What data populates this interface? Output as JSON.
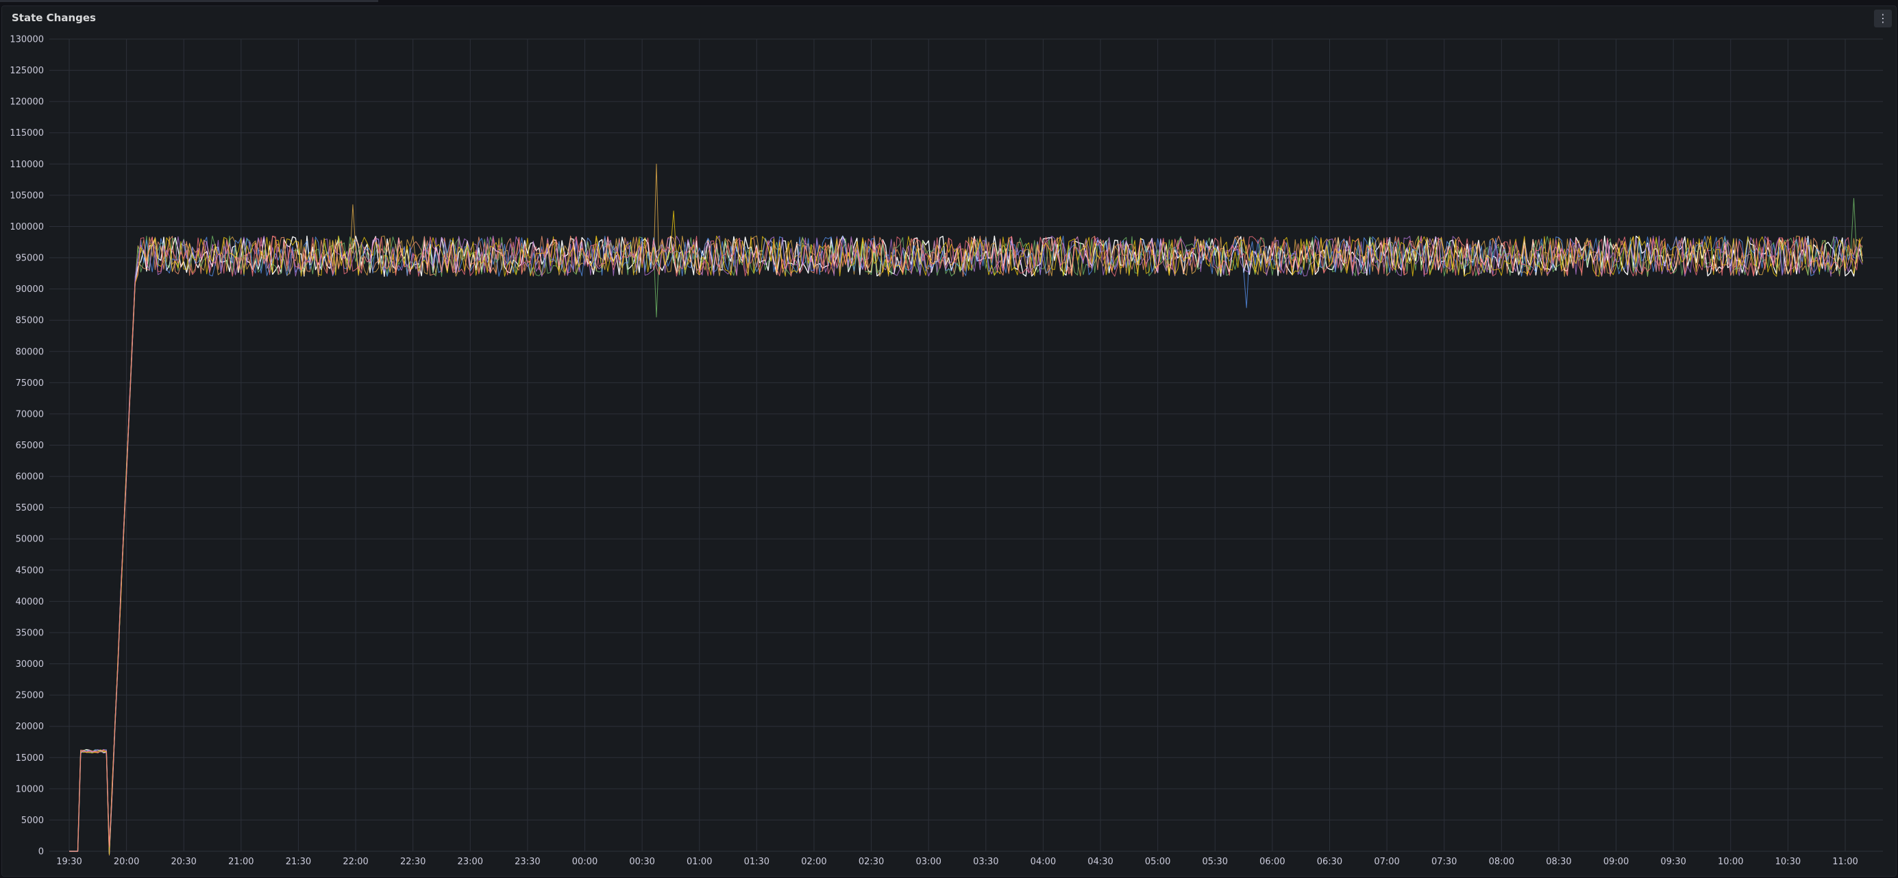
{
  "panel": {
    "title": "State Changes",
    "menu_icon": "vertical-ellipsis-icon",
    "menu_glyph": "⋮"
  },
  "colors": {
    "background": "#111217",
    "panel_bg": "#181b1f",
    "grid": "#2c3039",
    "text": "#ccccdc",
    "series": [
      "#ffffff",
      "#e8b04a",
      "#ff9a72",
      "#73bf69",
      "#5794f2",
      "#b877d9",
      "#f2cc0c",
      "#ff7383"
    ]
  },
  "chart_data": {
    "type": "line",
    "title": "State Changes",
    "xlabel": "",
    "ylabel": "",
    "ylim": [
      0,
      130000
    ],
    "yticks": [
      0,
      5000,
      10000,
      15000,
      20000,
      25000,
      30000,
      35000,
      40000,
      45000,
      50000,
      55000,
      60000,
      65000,
      70000,
      75000,
      80000,
      85000,
      90000,
      95000,
      100000,
      105000,
      110000,
      115000,
      120000,
      125000,
      130000
    ],
    "xtick_labels": [
      "19:30",
      "20:00",
      "20:30",
      "21:00",
      "21:30",
      "22:00",
      "22:30",
      "23:00",
      "23:30",
      "00:00",
      "00:30",
      "01:00",
      "01:30",
      "02:00",
      "02:30",
      "03:00",
      "03:30",
      "04:00",
      "04:30",
      "05:00",
      "05:30",
      "06:00",
      "06:30",
      "07:00",
      "07:30",
      "08:00",
      "08:30",
      "09:00",
      "09:30",
      "10:00",
      "10:30",
      "11:00"
    ],
    "x_range": [
      "19:26",
      "11:10"
    ],
    "grid": true,
    "legend": "none",
    "series_count": 8,
    "series_profile": {
      "start": "19:30",
      "end": "11:10",
      "initial_value": 0,
      "first_step_value": 16000,
      "first_step_start": "19:36",
      "first_step_end": "19:50",
      "ramp_start": "19:51",
      "ramp_end": "20:05",
      "plateau_center": 95000,
      "plateau_range": [
        92000,
        98500
      ]
    },
    "spikes": [
      {
        "time": "21:58",
        "value": 103500,
        "series": 1
      },
      {
        "time": "00:37",
        "value": 110000,
        "series": 1
      },
      {
        "time": "00:37",
        "value": 85500,
        "series": 3
      },
      {
        "time": "00:47",
        "value": 102500,
        "series": 6
      },
      {
        "time": "05:47",
        "value": 87000,
        "series": 4
      },
      {
        "time": "11:04",
        "value": 104500,
        "series": 3
      }
    ]
  }
}
